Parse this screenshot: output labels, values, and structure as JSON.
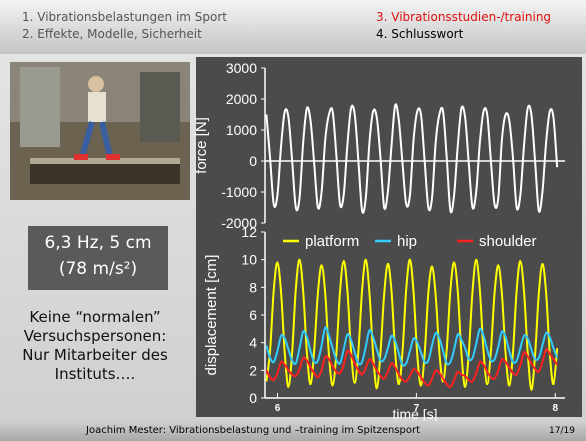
{
  "header": {
    "items": [
      "1. Vibrationsbelastungen im Sport",
      "2. Effekte, Modelle, Sicherheit",
      "3. Vibrationsstudien-/training",
      "4. Schlusswort"
    ]
  },
  "info_box": {
    "line1": "6,3 Hz, 5 cm",
    "line2": "(78 m/s²)"
  },
  "note": [
    "Keine “normalen”",
    "Versuchspersonen:",
    "Nur Mitarbeiter des",
    "Instituts…."
  ],
  "footer": {
    "text": "Joachim Mester: Vibrationsbelastung und –training im Spitzensport",
    "page": "17/19"
  },
  "chart_data": [
    {
      "type": "line",
      "ylabel": "force [N]",
      "xlim": [
        5.91,
        8.07
      ],
      "ylim": [
        -2000,
        3000
      ],
      "yticks": [
        -2000,
        -1000,
        0,
        1000,
        2000,
        3000
      ],
      "x": [
        5.92,
        5.9465,
        5.973,
        5.9995,
        6.026,
        6.0525,
        6.079,
        6.1055,
        6.132,
        6.1585,
        6.185,
        6.2115,
        6.238,
        6.2645,
        6.291,
        6.3175,
        6.344,
        6.3705,
        6.397,
        6.4235,
        6.45,
        6.4765,
        6.503,
        6.5295,
        6.556,
        6.5825,
        6.609,
        6.6355,
        6.662,
        6.6885,
        6.715,
        6.7415,
        6.768,
        6.7945,
        6.821,
        6.8475,
        6.874,
        6.9005,
        6.927,
        6.9535,
        6.98,
        7.0065,
        7.033,
        7.0595,
        7.086,
        7.1125,
        7.139,
        7.1655,
        7.192,
        7.2185,
        7.245,
        7.2715,
        7.298,
        7.3245,
        7.351,
        7.3775,
        7.404,
        7.4305,
        7.457,
        7.4835,
        7.51,
        7.5365,
        7.563,
        7.5895,
        7.616,
        7.6425,
        7.669,
        7.6955,
        7.722,
        7.7485,
        7.775,
        7.8015,
        7.828,
        7.8545,
        7.881,
        7.9075,
        7.934,
        7.9605,
        7.987,
        8.0135
      ],
      "series": [
        {
          "color": "#ffffff",
          "values": [
            1500,
            100,
            -1400,
            -1100,
            500,
            1600,
            1400,
            0,
            -1500,
            -1200,
            600,
            1700,
            1300,
            -100,
            -1500,
            -1000,
            700,
            1500,
            1600,
            200,
            -1400,
            -1100,
            500,
            1700,
            1500,
            0,
            -1600,
            -1200,
            600,
            1600,
            1400,
            100,
            -1500,
            -1000,
            500,
            1800,
            1300,
            -100,
            -1400,
            -1100,
            700,
            1600,
            1500,
            0,
            -1500,
            -1200,
            600,
            1500,
            1600,
            100,
            -1600,
            -1100,
            500,
            1700,
            1400,
            -100,
            -1500,
            -1000,
            600,
            1600,
            1500,
            0,
            -1400,
            -1200,
            700,
            1500,
            1300,
            100,
            -1500,
            -1100,
            500,
            1700,
            1500,
            0,
            -1600,
            -1000,
            600,
            1600,
            1400,
            -200
          ]
        }
      ]
    },
    {
      "type": "line",
      "xlabel": "time [s]",
      "ylabel": "displacement [cm]",
      "xlim": [
        5.91,
        8.07
      ],
      "ylim": [
        0,
        12
      ],
      "xticks": [
        6,
        7,
        8
      ],
      "yticks": [
        0,
        2,
        4,
        6,
        8,
        10,
        12
      ],
      "x": [
        5.92,
        5.9465,
        5.973,
        5.9995,
        6.026,
        6.0525,
        6.079,
        6.1055,
        6.132,
        6.1585,
        6.185,
        6.2115,
        6.238,
        6.2645,
        6.291,
        6.3175,
        6.344,
        6.3705,
        6.397,
        6.4235,
        6.45,
        6.4765,
        6.503,
        6.5295,
        6.556,
        6.5825,
        6.609,
        6.6355,
        6.662,
        6.6885,
        6.715,
        6.7415,
        6.768,
        6.7945,
        6.821,
        6.8475,
        6.874,
        6.9005,
        6.927,
        6.9535,
        6.98,
        7.0065,
        7.033,
        7.0595,
        7.086,
        7.1125,
        7.139,
        7.1655,
        7.192,
        7.2185,
        7.245,
        7.2715,
        7.298,
        7.3245,
        7.351,
        7.3775,
        7.404,
        7.4305,
        7.457,
        7.4835,
        7.51,
        7.5365,
        7.563,
        7.5895,
        7.616,
        7.6425,
        7.669,
        7.6955,
        7.722,
        7.7485,
        7.775,
        7.8015,
        7.828,
        7.8545,
        7.881,
        7.9075,
        7.934,
        7.9605,
        7.987,
        8.0135
      ],
      "series": [
        {
          "name": "platform",
          "color": "#ffff00",
          "values": [
            1.2,
            3.4,
            7.8,
            9.8,
            7.6,
            3.2,
            0.8,
            3.3,
            7.9,
            10,
            7.7,
            3.3,
            1,
            3.5,
            7.6,
            9.6,
            7.5,
            3.1,
            0.9,
            3.2,
            7.7,
            9.9,
            7.8,
            3.4,
            1.1,
            3.4,
            7.8,
            10,
            7.6,
            3.2,
            0.7,
            3.3,
            7.5,
            9.7,
            7.7,
            3.3,
            1,
            3.4,
            7.9,
            10,
            7.6,
            3.1,
            0.9,
            3.2,
            7.6,
            9.5,
            7.4,
            3.3,
            1.2,
            3.5,
            7.8,
            9.8,
            7.7,
            3.2,
            0.8,
            3.3,
            7.7,
            10,
            7.8,
            3.4,
            1,
            3.4,
            7.6,
            9.6,
            7.5,
            3.2,
            0.9,
            3.3,
            7.8,
            9.9,
            7.7,
            3.3,
            0.6,
            3.1,
            7.5,
            9.7,
            7.6,
            3.2,
            1,
            3.6
          ]
        },
        {
          "name": "hip",
          "color": "#33ccff",
          "values": [
            3.8,
            2.9,
            2.6,
            3.4,
            4.5,
            4.3,
            3.5,
            2.7,
            2.5,
            3.6,
            4.8,
            4.4,
            3.4,
            2.6,
            2.7,
            3.8,
            5.1,
            4.5,
            3.6,
            2.8,
            2.5,
            3.5,
            4.6,
            4.2,
            3.3,
            2.5,
            2.6,
            3.7,
            4.9,
            4.4,
            3.5,
            2.7,
            2.8,
            3.6,
            4.5,
            4.1,
            3.2,
            2.4,
            2.5,
            3.4,
            4.3,
            4,
            3.3,
            2.6,
            2.7,
            3.8,
            4.7,
            4.3,
            3.4,
            2.5,
            2.6,
            3.5,
            4.6,
            4.2,
            3.6,
            2.8,
            2.9,
            3.9,
            5,
            4.5,
            3.5,
            2.7,
            2.8,
            3.7,
            4.8,
            4.4,
            3.4,
            2.6,
            2.7,
            3.6,
            4.5,
            4.3,
            3.5,
            2.8,
            2.9,
            3.8,
            4.7,
            4.4,
            3.6,
            2.9
          ]
        },
        {
          "name": "shoulder",
          "color": "#ff2020",
          "values": [
            2,
            1.5,
            1.3,
            1.8,
            2.6,
            2.4,
            2,
            1.7,
            1.6,
            2.1,
            2.9,
            2.7,
            2.2,
            1.8,
            1.5,
            2,
            3,
            2.8,
            2.3,
            1.9,
            1.8,
            2.4,
            3.4,
            3.1,
            2.5,
            2,
            1.7,
            2.2,
            2.8,
            2.5,
            2,
            1.6,
            1.4,
            1.9,
            2.5,
            2.2,
            1.7,
            1.3,
            1.2,
            1.6,
            2.1,
            1.9,
            1.5,
            1.1,
            0.9,
            1.4,
            2,
            1.8,
            1.4,
            1,
            0.8,
            1.3,
            1.9,
            1.7,
            1.6,
            1.3,
            1.2,
            1.8,
            2.6,
            2.4,
            1.9,
            1.5,
            1.4,
            2,
            2.8,
            2.6,
            2.2,
            1.8,
            1.7,
            2.4,
            3.3,
            3,
            2.5,
            2.1,
            1.9,
            2.6,
            3.5,
            3.2,
            2.8,
            2.4
          ]
        }
      ]
    }
  ]
}
